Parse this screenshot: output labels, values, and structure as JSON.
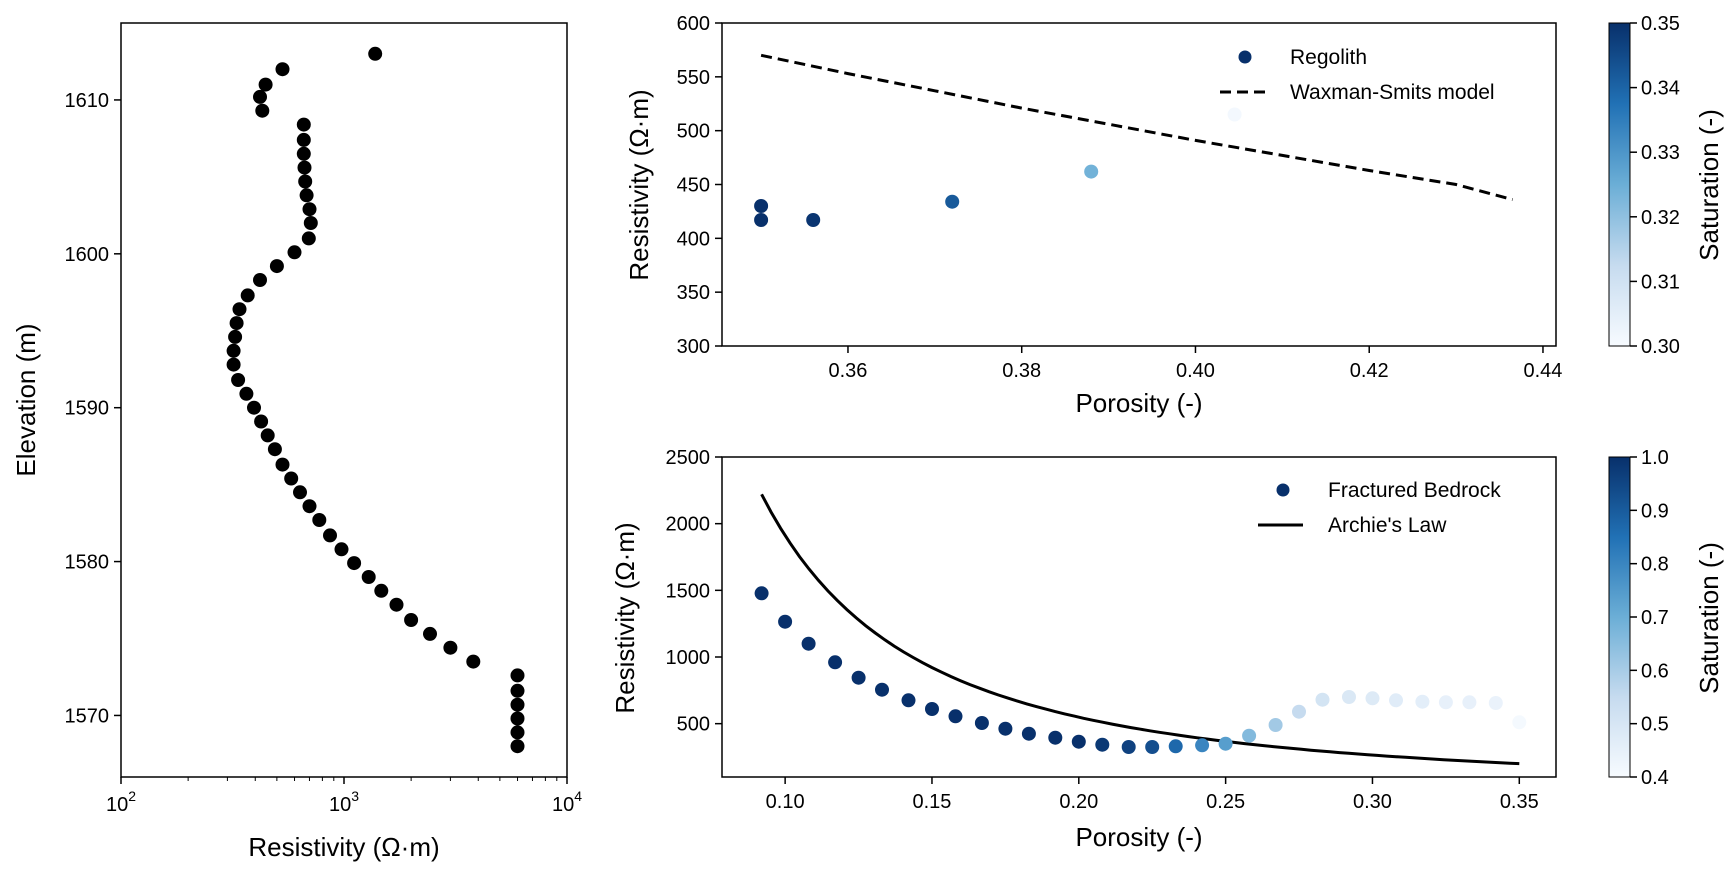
{
  "colors": {
    "black": "#000000",
    "blues_low": "#f7fbff",
    "blues_mid": "#6baed6",
    "blues_high": "#08306b"
  },
  "chart_data": [
    {
      "id": "profile",
      "type": "scatter",
      "xscale": "log",
      "xlabel": "Resistivity (Ω·m)",
      "ylabel": "Elevation (m)",
      "xlim": [
        100,
        10000
      ],
      "ylim": [
        1566,
        1615
      ],
      "xticks": [
        {
          "value": 100,
          "base": "10",
          "exp": "2"
        },
        {
          "value": 1000,
          "base": "10",
          "exp": "3"
        },
        {
          "value": 10000,
          "base": "10",
          "exp": "4"
        }
      ],
      "yticks": [
        1570,
        1580,
        1590,
        1600,
        1610
      ],
      "color": "#000000",
      "points": [
        {
          "x": 1380,
          "y": 1613
        },
        {
          "x": 530,
          "y": 1612
        },
        {
          "x": 445,
          "y": 1611
        },
        {
          "x": 420,
          "y": 1610.2
        },
        {
          "x": 430,
          "y": 1609.3
        },
        {
          "x": 660,
          "y": 1608.4
        },
        {
          "x": 660,
          "y": 1607.4
        },
        {
          "x": 660,
          "y": 1606.5
        },
        {
          "x": 665,
          "y": 1605.6
        },
        {
          "x": 670,
          "y": 1604.7
        },
        {
          "x": 680,
          "y": 1603.8
        },
        {
          "x": 700,
          "y": 1602.9
        },
        {
          "x": 710,
          "y": 1602
        },
        {
          "x": 695,
          "y": 1601
        },
        {
          "x": 600,
          "y": 1600.1
        },
        {
          "x": 500,
          "y": 1599.2
        },
        {
          "x": 420,
          "y": 1598.3
        },
        {
          "x": 370,
          "y": 1597.3
        },
        {
          "x": 340,
          "y": 1596.4
        },
        {
          "x": 330,
          "y": 1595.5
        },
        {
          "x": 325,
          "y": 1594.6
        },
        {
          "x": 320,
          "y": 1593.7
        },
        {
          "x": 320,
          "y": 1592.8
        },
        {
          "x": 335,
          "y": 1591.8
        },
        {
          "x": 365,
          "y": 1590.9
        },
        {
          "x": 395,
          "y": 1590
        },
        {
          "x": 425,
          "y": 1589.1
        },
        {
          "x": 455,
          "y": 1588.2
        },
        {
          "x": 490,
          "y": 1587.3
        },
        {
          "x": 530,
          "y": 1586.3
        },
        {
          "x": 580,
          "y": 1585.4
        },
        {
          "x": 635,
          "y": 1584.5
        },
        {
          "x": 700,
          "y": 1583.6
        },
        {
          "x": 775,
          "y": 1582.7
        },
        {
          "x": 865,
          "y": 1581.7
        },
        {
          "x": 975,
          "y": 1580.8
        },
        {
          "x": 1110,
          "y": 1579.9
        },
        {
          "x": 1290,
          "y": 1579
        },
        {
          "x": 1470,
          "y": 1578.1
        },
        {
          "x": 1720,
          "y": 1577.2
        },
        {
          "x": 2000,
          "y": 1576.2
        },
        {
          "x": 2430,
          "y": 1575.3
        },
        {
          "x": 3000,
          "y": 1574.4
        },
        {
          "x": 3800,
          "y": 1573.5
        },
        {
          "x": 6000,
          "y": 1572.6
        },
        {
          "x": 6000,
          "y": 1571.6
        },
        {
          "x": 6000,
          "y": 1570.7
        },
        {
          "x": 6000,
          "y": 1569.8
        },
        {
          "x": 6000,
          "y": 1568.9
        },
        {
          "x": 6000,
          "y": 1568
        }
      ]
    },
    {
      "id": "regolith",
      "type": "scatter",
      "xlabel": "Porosity (-)",
      "ylabel": "Resistivity (Ω·m)",
      "xlim": [
        0.3455,
        0.4415
      ],
      "ylim": [
        300,
        600
      ],
      "xticks": [
        "0.36",
        "0.38",
        "0.40",
        "0.42",
        "0.44"
      ],
      "yticks": [
        "300",
        "350",
        "400",
        "450",
        "500",
        "550",
        "600"
      ],
      "series": [
        {
          "name": "Regolith",
          "kind": "points",
          "points": [
            {
              "x": 0.35,
              "y": 430,
              "s": 0.35
            },
            {
              "x": 0.35,
              "y": 417,
              "s": 0.35
            },
            {
              "x": 0.356,
              "y": 417,
              "s": 0.349
            },
            {
              "x": 0.372,
              "y": 434,
              "s": 0.342
            },
            {
              "x": 0.388,
              "y": 462,
              "s": 0.324
            },
            {
              "x": 0.4045,
              "y": 515,
              "s": 0.301
            }
          ]
        },
        {
          "name": "Waxman-Smits model",
          "kind": "dashed-line",
          "points": [
            {
              "x": 0.35,
              "y": 570
            },
            {
              "x": 0.36,
              "y": 553
            },
            {
              "x": 0.37,
              "y": 537
            },
            {
              "x": 0.38,
              "y": 521
            },
            {
              "x": 0.39,
              "y": 506
            },
            {
              "x": 0.4,
              "y": 491
            },
            {
              "x": 0.41,
              "y": 477
            },
            {
              "x": 0.42,
              "y": 463
            },
            {
              "x": 0.43,
              "y": 450
            },
            {
              "x": 0.4365,
              "y": 436
            }
          ]
        }
      ],
      "colorbar": {
        "label": "Saturation (-)",
        "range": [
          0.3,
          0.35
        ],
        "ticks": [
          "0.30",
          "0.31",
          "0.32",
          "0.33",
          "0.34",
          "0.35"
        ]
      }
    },
    {
      "id": "bedrock",
      "type": "scatter",
      "xlabel": "Porosity (-)",
      "ylabel": "Resistivity (Ω·m)",
      "xlim": [
        0.0785,
        0.3625
      ],
      "ylim": [
        100,
        2500
      ],
      "xticks": [
        "0.10",
        "0.15",
        "0.20",
        "0.25",
        "0.30",
        "0.35"
      ],
      "yticks": [
        "500",
        "1000",
        "1500",
        "2000",
        "2500"
      ],
      "series": [
        {
          "name": "Fractured Bedrock",
          "kind": "points",
          "points": [
            {
              "x": 0.092,
              "y": 1478,
              "s": 1.0
            },
            {
              "x": 0.1,
              "y": 1265,
              "s": 1.0
            },
            {
              "x": 0.108,
              "y": 1100,
              "s": 1.0
            },
            {
              "x": 0.117,
              "y": 960,
              "s": 1.0
            },
            {
              "x": 0.125,
              "y": 845,
              "s": 1.0
            },
            {
              "x": 0.133,
              "y": 755,
              "s": 1.0
            },
            {
              "x": 0.142,
              "y": 675,
              "s": 1.0
            },
            {
              "x": 0.15,
              "y": 610,
              "s": 1.0
            },
            {
              "x": 0.158,
              "y": 555,
              "s": 1.0
            },
            {
              "x": 0.167,
              "y": 505,
              "s": 1.0
            },
            {
              "x": 0.175,
              "y": 462,
              "s": 1.0
            },
            {
              "x": 0.183,
              "y": 425,
              "s": 1.0
            },
            {
              "x": 0.192,
              "y": 395,
              "s": 1.0
            },
            {
              "x": 0.2,
              "y": 365,
              "s": 1.0
            },
            {
              "x": 0.208,
              "y": 342,
              "s": 0.98
            },
            {
              "x": 0.217,
              "y": 325,
              "s": 0.96
            },
            {
              "x": 0.225,
              "y": 325,
              "s": 0.93
            },
            {
              "x": 0.233,
              "y": 330,
              "s": 0.87
            },
            {
              "x": 0.242,
              "y": 338,
              "s": 0.8
            },
            {
              "x": 0.25,
              "y": 350,
              "s": 0.74
            },
            {
              "x": 0.258,
              "y": 410,
              "s": 0.66
            },
            {
              "x": 0.267,
              "y": 490,
              "s": 0.61
            },
            {
              "x": 0.275,
              "y": 590,
              "s": 0.55
            },
            {
              "x": 0.283,
              "y": 680,
              "s": 0.51
            },
            {
              "x": 0.292,
              "y": 700,
              "s": 0.49
            },
            {
              "x": 0.3,
              "y": 690,
              "s": 0.48
            },
            {
              "x": 0.308,
              "y": 675,
              "s": 0.47
            },
            {
              "x": 0.317,
              "y": 665,
              "s": 0.46
            },
            {
              "x": 0.325,
              "y": 660,
              "s": 0.45
            },
            {
              "x": 0.333,
              "y": 660,
              "s": 0.45
            },
            {
              "x": 0.342,
              "y": 655,
              "s": 0.44
            },
            {
              "x": 0.35,
              "y": 510,
              "s": 0.41
            }
          ]
        },
        {
          "name": "Archie's Law",
          "kind": "solid-line",
          "model": {
            "a": 2220,
            "x0": 0.092,
            "exponent": 1.8,
            "x_end": 0.35
          }
        }
      ],
      "colorbar": {
        "label": "Saturation (-)",
        "range": [
          0.4,
          1.0
        ],
        "ticks": [
          "0.4",
          "0.5",
          "0.6",
          "0.7",
          "0.8",
          "0.9",
          "1.0"
        ]
      }
    }
  ]
}
